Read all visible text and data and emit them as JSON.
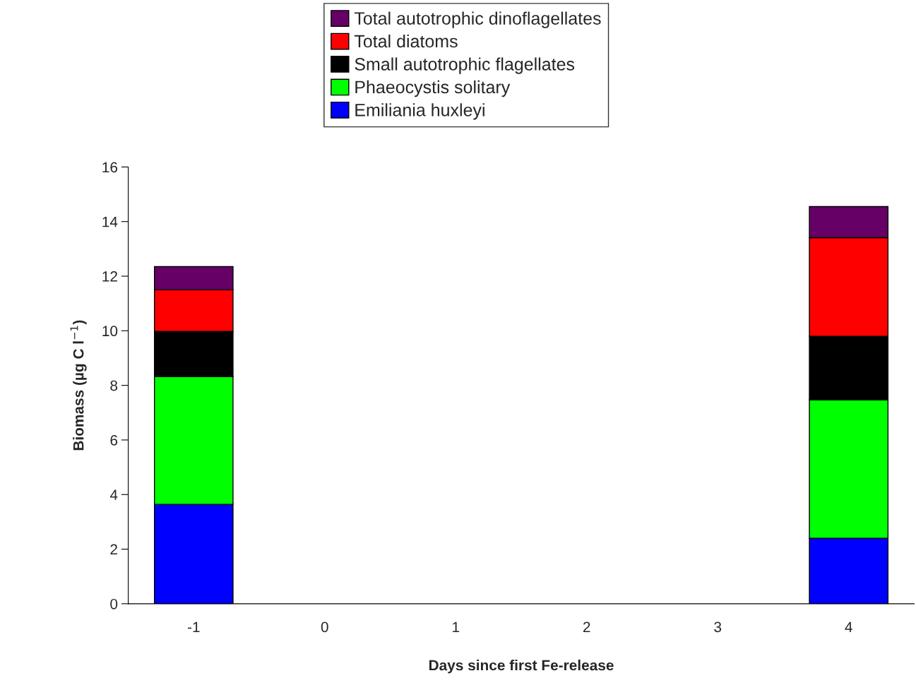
{
  "chart_data": {
    "type": "bar",
    "stacked": true,
    "xlabel": "Days since first Fe-release",
    "ylabel": "Biomass (µg C l$^{−1}$)",
    "categories": [
      "-1",
      "0",
      "1",
      "2",
      "3",
      "4"
    ],
    "series": [
      {
        "name": "Emiliania huxleyi",
        "color": "#0000ff",
        "values": [
          3.64,
          null,
          null,
          null,
          null,
          2.4
        ]
      },
      {
        "name": "Phaeocystis solitary",
        "color": "#00ff00",
        "values": [
          4.68,
          null,
          null,
          null,
          null,
          5.07
        ]
      },
      {
        "name": "Small autotrophic flagellates",
        "color": "#000000",
        "values": [
          1.66,
          null,
          null,
          null,
          null,
          2.33
        ]
      },
      {
        "name": "Total diatoms",
        "color": "#ff0000",
        "values": [
          1.52,
          null,
          null,
          null,
          null,
          3.61
        ]
      },
      {
        "name": "Total autotrophic dinoflagellates",
        "color": "#660066",
        "values": [
          0.85,
          null,
          null,
          null,
          null,
          1.14
        ]
      }
    ],
    "ylim": [
      0,
      16
    ],
    "yticks": [
      0,
      2,
      4,
      6,
      8,
      10,
      12,
      14,
      16
    ],
    "grid": false,
    "legend": "top"
  }
}
